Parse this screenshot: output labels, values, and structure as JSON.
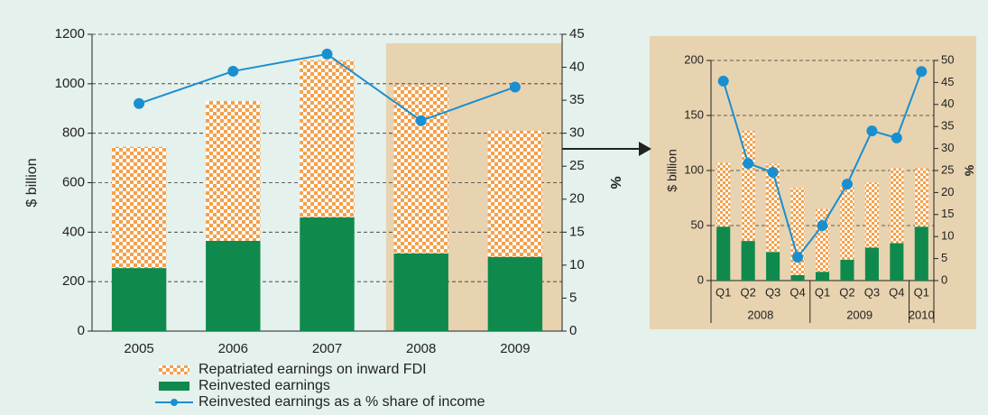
{
  "chart_data": [
    {
      "type": "bar",
      "categories": [
        "2005",
        "2006",
        "2007",
        "2008",
        "2009"
      ],
      "ylabel": "$ billion",
      "y2label": "%",
      "ylim": [
        0,
        1200
      ],
      "yticks": [
        0,
        200,
        400,
        600,
        800,
        1000,
        1200
      ],
      "y2lim": [
        0,
        45
      ],
      "y2ticks": [
        0,
        5,
        10,
        15,
        20,
        25,
        30,
        35,
        40,
        45
      ],
      "grid": true,
      "legend": "bottom",
      "series": [
        {
          "name": "Reinvested earnings",
          "type": "bar",
          "color": "#0f8a4c",
          "values": [
            255,
            365,
            460,
            314,
            300
          ]
        },
        {
          "name": "Repatriated earnings on inward FDI",
          "type": "bar",
          "color": "#f5a04a",
          "values": [
            490,
            565,
            635,
            680,
            510
          ]
        },
        {
          "name": "Reinvested earnings as a % share of income",
          "type": "line",
          "axis": "y2",
          "color": "#1a8fd0",
          "values": [
            34.5,
            39.4,
            42,
            31.9,
            37
          ]
        }
      ]
    },
    {
      "type": "bar",
      "categories": [
        "Q1",
        "Q2",
        "Q3",
        "Q4",
        "Q1",
        "Q2",
        "Q3",
        "Q4",
        "Q1"
      ],
      "group_labels": [
        "2008",
        "2009",
        "2010"
      ],
      "group_sizes": [
        4,
        4,
        1
      ],
      "ylabel": "$ billion",
      "y2label": "%",
      "ylim": [
        0,
        200
      ],
      "yticks": [
        0,
        50,
        100,
        150,
        200
      ],
      "y2lim": [
        0,
        50
      ],
      "y2ticks": [
        0,
        5,
        10,
        15,
        20,
        25,
        30,
        35,
        40,
        45,
        50
      ],
      "grid": true,
      "series": [
        {
          "type": "bar",
          "color": "#0f8a4c",
          "values": [
            49,
            36,
            26,
            5,
            8,
            19,
            30,
            34,
            49
          ]
        },
        {
          "type": "bar",
          "color": "#f5a04a",
          "values": [
            58,
            100,
            80,
            79,
            57,
            67,
            59,
            68,
            53
          ]
        },
        {
          "type": "line",
          "axis": "y2",
          "color": "#1a8fd0",
          "values": [
            45.3,
            26.6,
            24.6,
            5.3,
            12.5,
            21.9,
            34,
            32.4,
            47.5
          ]
        }
      ]
    }
  ]
}
